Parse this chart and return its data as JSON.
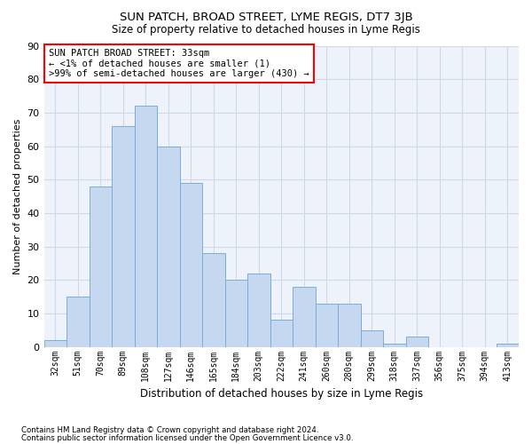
{
  "title": "SUN PATCH, BROAD STREET, LYME REGIS, DT7 3JB",
  "subtitle": "Size of property relative to detached houses in Lyme Regis",
  "xlabel": "Distribution of detached houses by size in Lyme Regis",
  "ylabel": "Number of detached properties",
  "categories": [
    "32sqm",
    "51sqm",
    "70sqm",
    "89sqm",
    "108sqm",
    "127sqm",
    "146sqm",
    "165sqm",
    "184sqm",
    "203sqm",
    "222sqm",
    "241sqm",
    "260sqm",
    "280sqm",
    "299sqm",
    "318sqm",
    "337sqm",
    "356sqm",
    "375sqm",
    "394sqm",
    "413sqm"
  ],
  "values": [
    2,
    15,
    48,
    66,
    72,
    60,
    49,
    28,
    20,
    22,
    8,
    18,
    13,
    13,
    5,
    1,
    3,
    0,
    0,
    0,
    1
  ],
  "bar_color": "#c5d8f0",
  "bar_edge_color": "#7aaed6",
  "annotation_box_text": "SUN PATCH BROAD STREET: 33sqm\n← <1% of detached houses are smaller (1)\n>99% of semi-detached houses are larger (430) →",
  "ylim": [
    0,
    90
  ],
  "yticks": [
    0,
    10,
    20,
    30,
    40,
    50,
    60,
    70,
    80,
    90
  ],
  "grid_color": "#d0d8e8",
  "background_color": "#eef2fa",
  "footnote1": "Contains HM Land Registry data © Crown copyright and database right 2024.",
  "footnote2": "Contains public sector information licensed under the Open Government Licence v3.0."
}
